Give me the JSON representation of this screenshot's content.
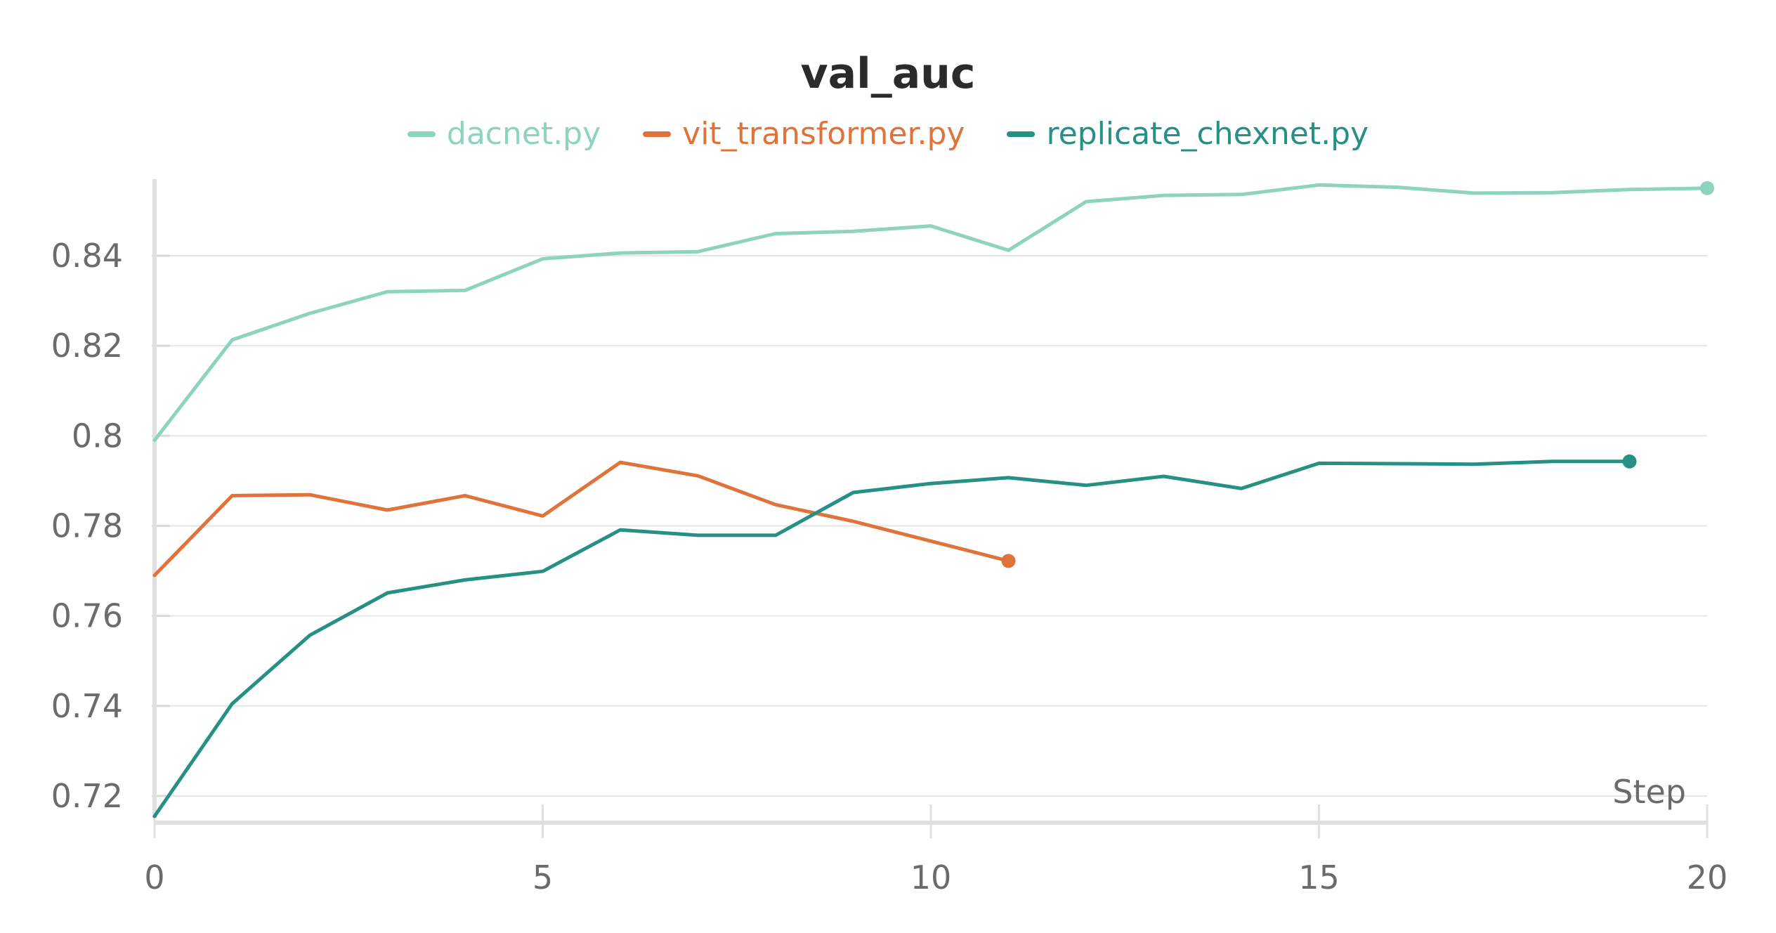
{
  "chart_data": {
    "type": "line",
    "title": "val_auc",
    "xlabel": "Step",
    "ylabel": "",
    "xlim": [
      0,
      20
    ],
    "ylim": [
      0.715,
      0.857
    ],
    "xticks": [
      0,
      5,
      10,
      15,
      20
    ],
    "yticks": [
      0.72,
      0.74,
      0.76,
      0.78,
      0.8,
      0.82,
      0.84
    ],
    "ytick_labels": [
      "0.72",
      "0.74",
      "0.76",
      "0.78",
      "0.8",
      "0.82",
      "0.84"
    ],
    "grid": true,
    "legend_position": "top",
    "series": [
      {
        "name": "dacnet.py",
        "color": "#8dd3bf",
        "x": [
          0,
          1,
          2,
          3,
          4,
          5,
          6,
          7,
          8,
          9,
          10,
          11,
          12,
          13,
          14,
          15,
          16,
          17,
          18,
          19,
          20
        ],
        "y": [
          0.799,
          0.8213,
          0.8272,
          0.832,
          0.8323,
          0.8393,
          0.8406,
          0.8409,
          0.8449,
          0.8454,
          0.8466,
          0.8412,
          0.852,
          0.8534,
          0.8536,
          0.8557,
          0.8552,
          0.8539,
          0.854,
          0.8547,
          0.855
        ]
      },
      {
        "name": "vit_transformer.py",
        "color": "#e0733a",
        "x": [
          0,
          1,
          2,
          3,
          4,
          5,
          6,
          7,
          8,
          9,
          10,
          11
        ],
        "y": [
          0.769,
          0.7867,
          0.7869,
          0.7835,
          0.7867,
          0.7822,
          0.7941,
          0.7911,
          0.7847,
          0.781,
          0.7766,
          0.7722
        ]
      },
      {
        "name": "replicate_chexnet.py",
        "color": "#259083",
        "x": [
          0,
          1,
          2,
          3,
          4,
          5,
          6,
          7,
          8,
          9,
          10,
          11,
          12,
          13,
          14,
          15,
          16,
          17,
          18,
          19
        ],
        "y": [
          0.7155,
          0.7405,
          0.7557,
          0.7651,
          0.768,
          0.7699,
          0.7791,
          0.7779,
          0.7779,
          0.7874,
          0.7894,
          0.7907,
          0.789,
          0.791,
          0.7883,
          0.7939,
          0.7938,
          0.7937,
          0.7943,
          0.7943
        ]
      }
    ]
  }
}
